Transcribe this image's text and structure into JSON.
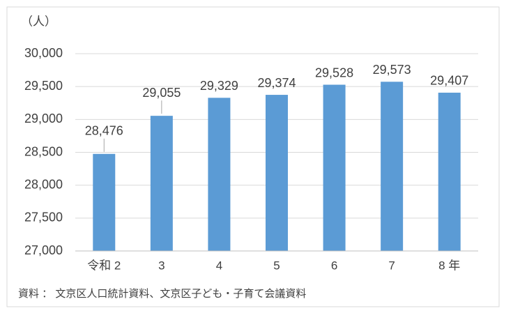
{
  "chart_data": {
    "type": "bar",
    "unit_label": "（人）",
    "categories": [
      "令和 2",
      "3",
      "4",
      "5",
      "6",
      "7",
      "8 年"
    ],
    "values": [
      28476,
      29055,
      29329,
      29374,
      29528,
      29573,
      29407
    ],
    "value_labels": [
      "28,476",
      "29,055",
      "29,329",
      "29,374",
      "29,528",
      "29,573",
      "29,407"
    ],
    "color": "#5b9bd5",
    "ylim": [
      27000,
      30000
    ],
    "yticks": [
      {
        "value": 27000,
        "label": "27,000"
      },
      {
        "value": 27500,
        "label": "27,500"
      },
      {
        "value": 28000,
        "label": "28,000"
      },
      {
        "value": 28500,
        "label": "28,500"
      },
      {
        "value": 29000,
        "label": "29,000"
      },
      {
        "value": 29500,
        "label": "29,500"
      },
      {
        "value": 30000,
        "label": "30,000"
      }
    ],
    "grid": true,
    "source_note": "資料 ： 文京区人口統計資料、文京区子ども・子育て会議資料"
  }
}
